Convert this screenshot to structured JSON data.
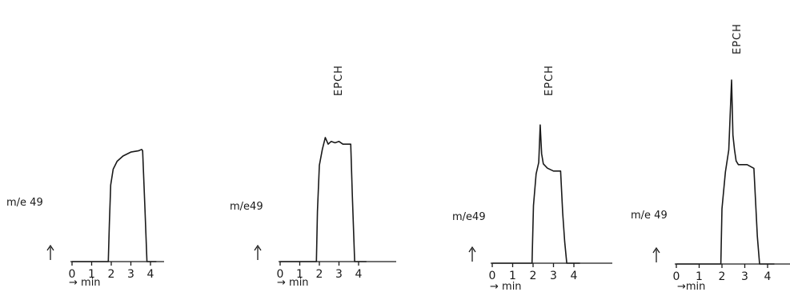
{
  "chart_data": [
    {
      "type": "line",
      "ylabel": "m/e 49",
      "xlabel": "→ min",
      "x_ticks": [
        "0",
        "1",
        "2",
        "3",
        "4"
      ],
      "xlim": [
        0,
        4.4
      ],
      "ylim": [
        0,
        1.0
      ],
      "peak_label": "",
      "series": [
        {
          "x": [
            0,
            1.85,
            1.9,
            1.97,
            2.1,
            2.3,
            2.6,
            3.0,
            3.4,
            3.55,
            3.6,
            3.72,
            3.82,
            4.3
          ],
          "y": [
            0,
            0,
            0.28,
            0.58,
            0.7,
            0.76,
            0.8,
            0.83,
            0.84,
            0.85,
            0.84,
            0.4,
            0,
            0
          ]
        }
      ]
    },
    {
      "type": "line",
      "ylabel": "m/e49",
      "xlabel": "→ min",
      "x_ticks": [
        "0",
        "1",
        "2",
        "3",
        "4"
      ],
      "xlim": [
        0,
        4.4
      ],
      "ylim": [
        0,
        1.0
      ],
      "peak_label": "EPCH",
      "series": [
        {
          "x": [
            0,
            1.85,
            1.9,
            2.0,
            2.15,
            2.3,
            2.45,
            2.6,
            2.8,
            3.0,
            3.2,
            3.6,
            3.68,
            3.8,
            4.4
          ],
          "y": [
            0,
            0,
            0.38,
            0.73,
            0.85,
            0.94,
            0.89,
            0.91,
            0.9,
            0.91,
            0.89,
            0.89,
            0.5,
            0,
            0
          ]
        }
      ]
    },
    {
      "type": "line",
      "ylabel": "m/e49",
      "xlabel": "→ min",
      "x_ticks": [
        "0",
        "1",
        "2",
        "3",
        "4"
      ],
      "xlim": [
        0,
        4.4
      ],
      "ylim": [
        0,
        1.0
      ],
      "peak_label": "EPCH",
      "series": [
        {
          "x": [
            0,
            1.95,
            2.02,
            2.15,
            2.28,
            2.35,
            2.42,
            2.5,
            2.7,
            3.0,
            3.35,
            3.45,
            3.55,
            3.65,
            4.3
          ],
          "y": [
            0,
            0,
            0.4,
            0.62,
            0.7,
            0.96,
            0.76,
            0.69,
            0.66,
            0.64,
            0.64,
            0.35,
            0.15,
            0,
            0
          ]
        }
      ]
    },
    {
      "type": "line",
      "ylabel": "m/e 49",
      "xlabel": "→min",
      "x_ticks": [
        "0",
        "1",
        "2",
        "3",
        "4"
      ],
      "xlim": [
        0,
        4.4
      ],
      "ylim": [
        0,
        1.0
      ],
      "peak_label": "EPCH",
      "series": [
        {
          "x": [
            0,
            1.95,
            2.0,
            2.15,
            2.3,
            2.42,
            2.48,
            2.55,
            2.62,
            2.72,
            2.85,
            3.1,
            3.4,
            3.55,
            3.65,
            4.3
          ],
          "y": [
            0,
            0,
            0.3,
            0.5,
            0.62,
            1.0,
            0.7,
            0.62,
            0.56,
            0.54,
            0.54,
            0.54,
            0.52,
            0.15,
            0,
            0
          ]
        }
      ]
    }
  ]
}
